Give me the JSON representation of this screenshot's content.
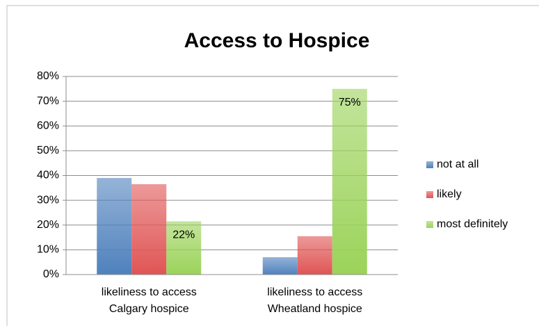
{
  "chart_data": {
    "type": "bar",
    "title": "Access to Hospice",
    "categories": [
      "likeliness to access Calgary hospice",
      "likeliness to access Wheatland hospice"
    ],
    "series": [
      {
        "name": "not at all",
        "color": "#4f81bd",
        "values": [
          39,
          7
        ]
      },
      {
        "name": "likely",
        "color": "#e05555",
        "values": [
          36.5,
          15.5
        ]
      },
      {
        "name": "most definitely",
        "color": "#9bd35a",
        "values": [
          21.5,
          75
        ],
        "value_labels": [
          "22%",
          "75%"
        ]
      }
    ],
    "ylim": [
      0,
      80
    ],
    "yticks": [
      {
        "value": 0,
        "label": "0%"
      },
      {
        "value": 10,
        "label": "10%"
      },
      {
        "value": 20,
        "label": "20%"
      },
      {
        "value": 30,
        "label": "30%"
      },
      {
        "value": 40,
        "label": "40%"
      },
      {
        "value": 50,
        "label": "50%"
      },
      {
        "value": 60,
        "label": "60%"
      },
      {
        "value": 70,
        "label": "70%"
      },
      {
        "value": 80,
        "label": "80%"
      }
    ],
    "grid": true,
    "legend": "right"
  }
}
